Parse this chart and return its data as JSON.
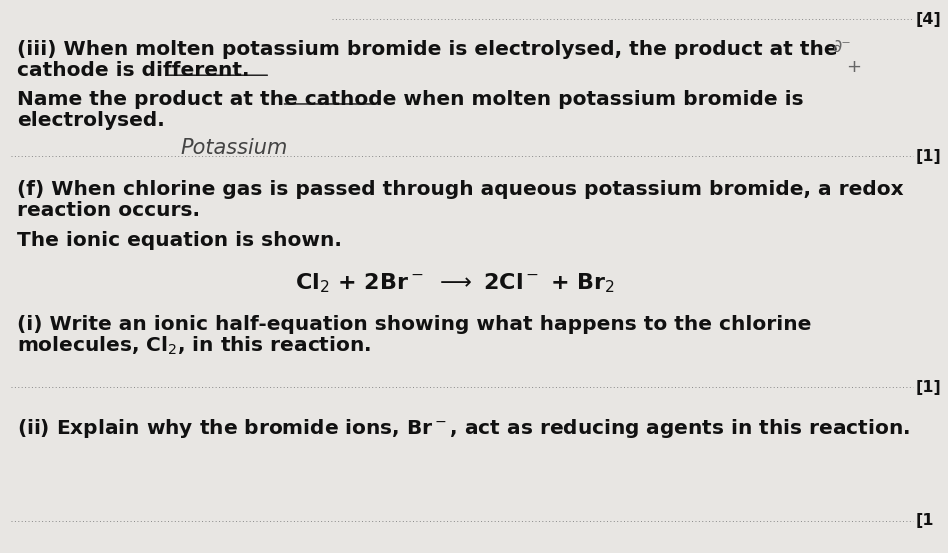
{
  "bg_color": "#e8e6e3",
  "text_color": "#111111",
  "dot_color": "#888888",
  "title_bracket": "[4]",
  "line1a": "(iii) When molten potassium bromide is electrolysed, the product at the",
  "line1b": "cathode is different.",
  "line2a": "Name the product at the cathode when molten potassium bromide is",
  "line2b": "electrolysed.",
  "answer_text": "Potassium",
  "bracket1": "[1]",
  "line3a": "(f) When chlorine gas is passed through aqueous potassium bromide, a redox",
  "line3b": "reaction occurs.",
  "line4": "The ionic equation is shown.",
  "bracket2": "[1]",
  "line5a": "(i) Write an ionic half-equation showing what happens to the chlorine",
  "line5b": "molecules, Cl₂, in this reaction.",
  "bracket3": "[1]",
  "line6": "(ii) Explain why the bromide ions, Br⁻, act as reducing agents in this reaction.",
  "bracket4": "[1",
  "font_size": 14.5,
  "bold_font": "DejaVu Sans",
  "eq_font_size": 15.0,
  "handwriting_color": "#444444",
  "right_note1": "∂⁻",
  "right_note2": "+"
}
